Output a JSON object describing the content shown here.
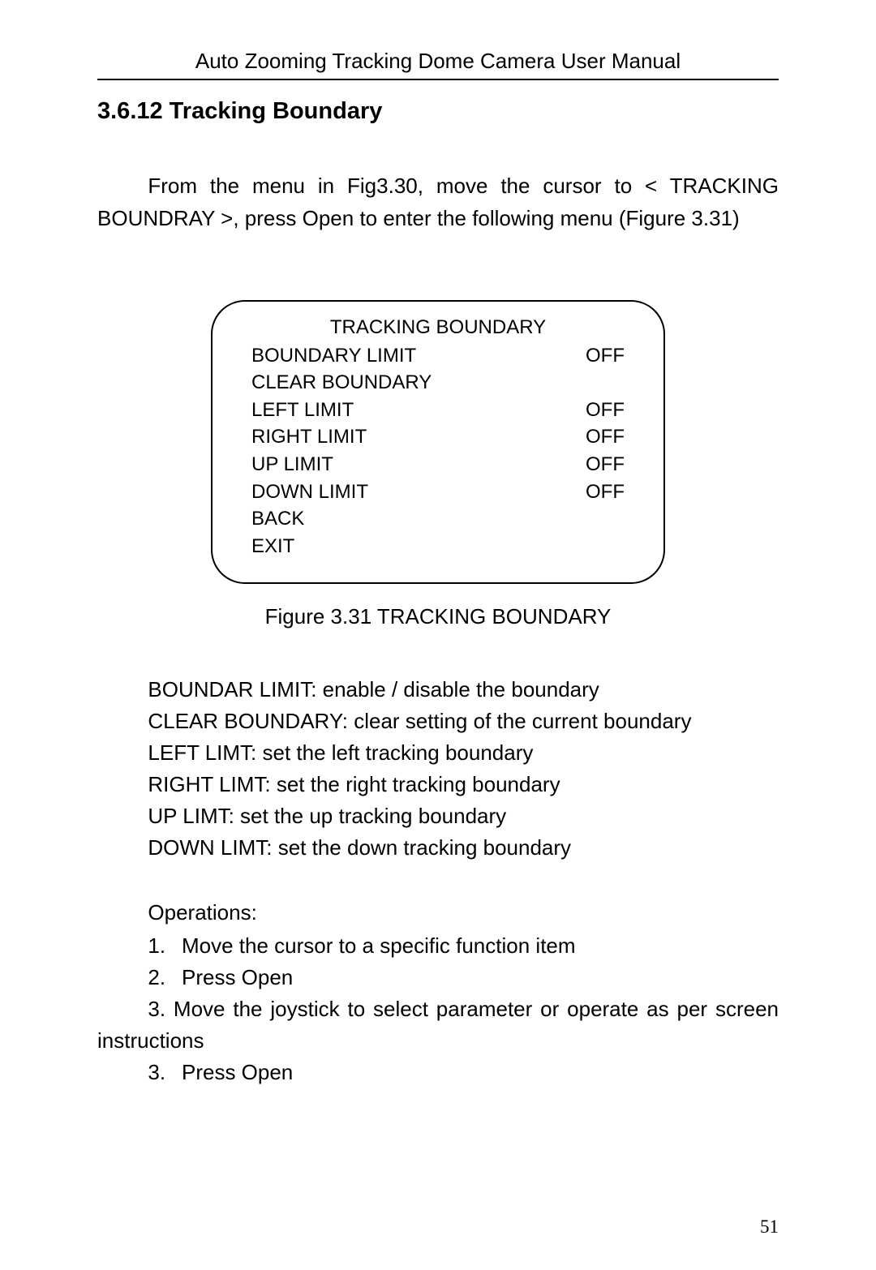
{
  "header": "Auto Zooming Tracking Dome Camera User Manual",
  "section_title": "3.6.12 Tracking Boundary",
  "intro": "From the menu in Fig3.30, move the cursor to < TRACKING BOUNDRAY >, press Open to enter the following menu (Figure 3.31)",
  "menu": {
    "title": "TRACKING BOUNDARY",
    "rows": [
      {
        "label": "BOUNDARY LIMIT",
        "value": "OFF"
      },
      {
        "label": "CLEAR BOUNDARY",
        "value": ""
      },
      {
        "label": "LEFT LIMIT",
        "value": "OFF"
      },
      {
        "label": "RIGHT LIMIT",
        "value": "OFF"
      },
      {
        "label": "UP LIMIT",
        "value": "OFF"
      },
      {
        "label": "DOWN LIMIT",
        "value": "OFF"
      },
      {
        "label": "BACK",
        "value": ""
      },
      {
        "label": "EXIT",
        "value": ""
      }
    ]
  },
  "figure_caption": "Figure 3.31 TRACKING BOUNDARY",
  "descriptions": [
    "BOUNDAR LIMIT: enable / disable the boundary",
    "CLEAR BOUNDARY: clear setting of the current boundary",
    "LEFT LIMT: set the left tracking boundary",
    "RIGHT LIMT: set the right tracking boundary",
    "UP LIMT: set the up tracking boundary",
    "DOWN LIMT: set the down tracking boundary"
  ],
  "operations": {
    "title": "Operations:",
    "items": [
      {
        "num": "1.",
        "text": "Move the cursor to a specific function item"
      },
      {
        "num": "2.",
        "text": "Press Open"
      }
    ],
    "wrap_item": "3. Move the joystick to select parameter or operate as per screen instructions",
    "last_item": {
      "num": "3.",
      "text": "Press Open"
    }
  },
  "page_number": "51"
}
